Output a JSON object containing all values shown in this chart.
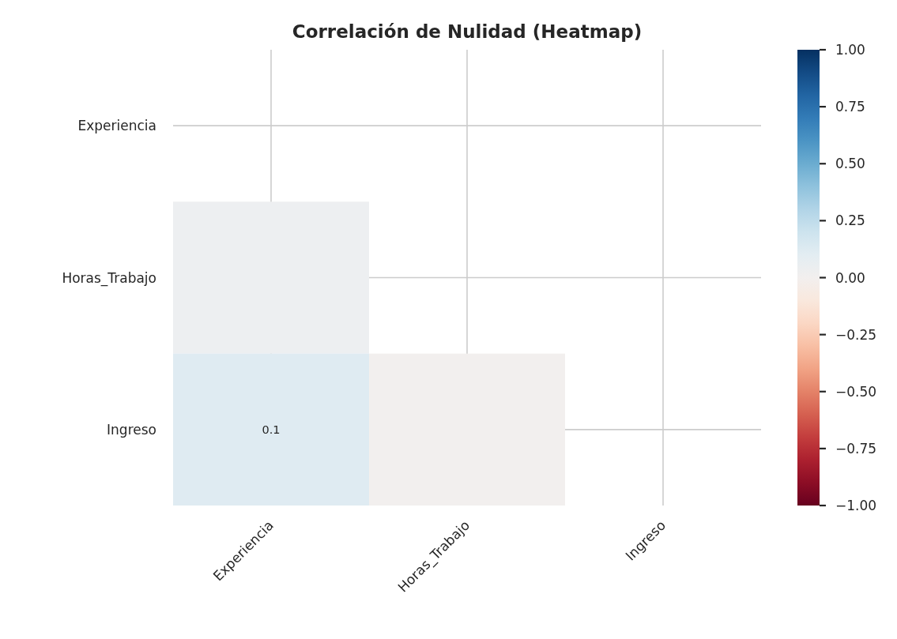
{
  "chart_data": {
    "type": "heatmap",
    "title": "Correlación de Nulidad (Heatmap)",
    "categories": [
      "Experiencia",
      "Horas_Trabajo",
      "Ingreso"
    ],
    "y_categories": [
      "Experiencia",
      "Horas_Trabajo",
      "Ingreso"
    ],
    "cells": [
      [
        null,
        null,
        null
      ],
      [
        0.04,
        null,
        null
      ],
      [
        0.12,
        0.0,
        null
      ]
    ],
    "cell_labels": [
      [
        null,
        null,
        null
      ],
      [
        null,
        null,
        null
      ],
      [
        "0.1",
        null,
        null
      ]
    ],
    "clim": [
      -1,
      1
    ],
    "cticks": [
      {
        "value": 1,
        "label": "1.00"
      },
      {
        "value": 0.75,
        "label": "0.75"
      },
      {
        "value": 0.5,
        "label": "0.50"
      },
      {
        "value": 0.25,
        "label": "0.25"
      },
      {
        "value": 0,
        "label": "0.00"
      },
      {
        "value": -0.25,
        "label": "−0.25"
      },
      {
        "value": -0.5,
        "label": "−0.50"
      },
      {
        "value": -0.75,
        "label": "−0.75"
      },
      {
        "value": -1,
        "label": "−1.00"
      }
    ],
    "grid": true
  }
}
